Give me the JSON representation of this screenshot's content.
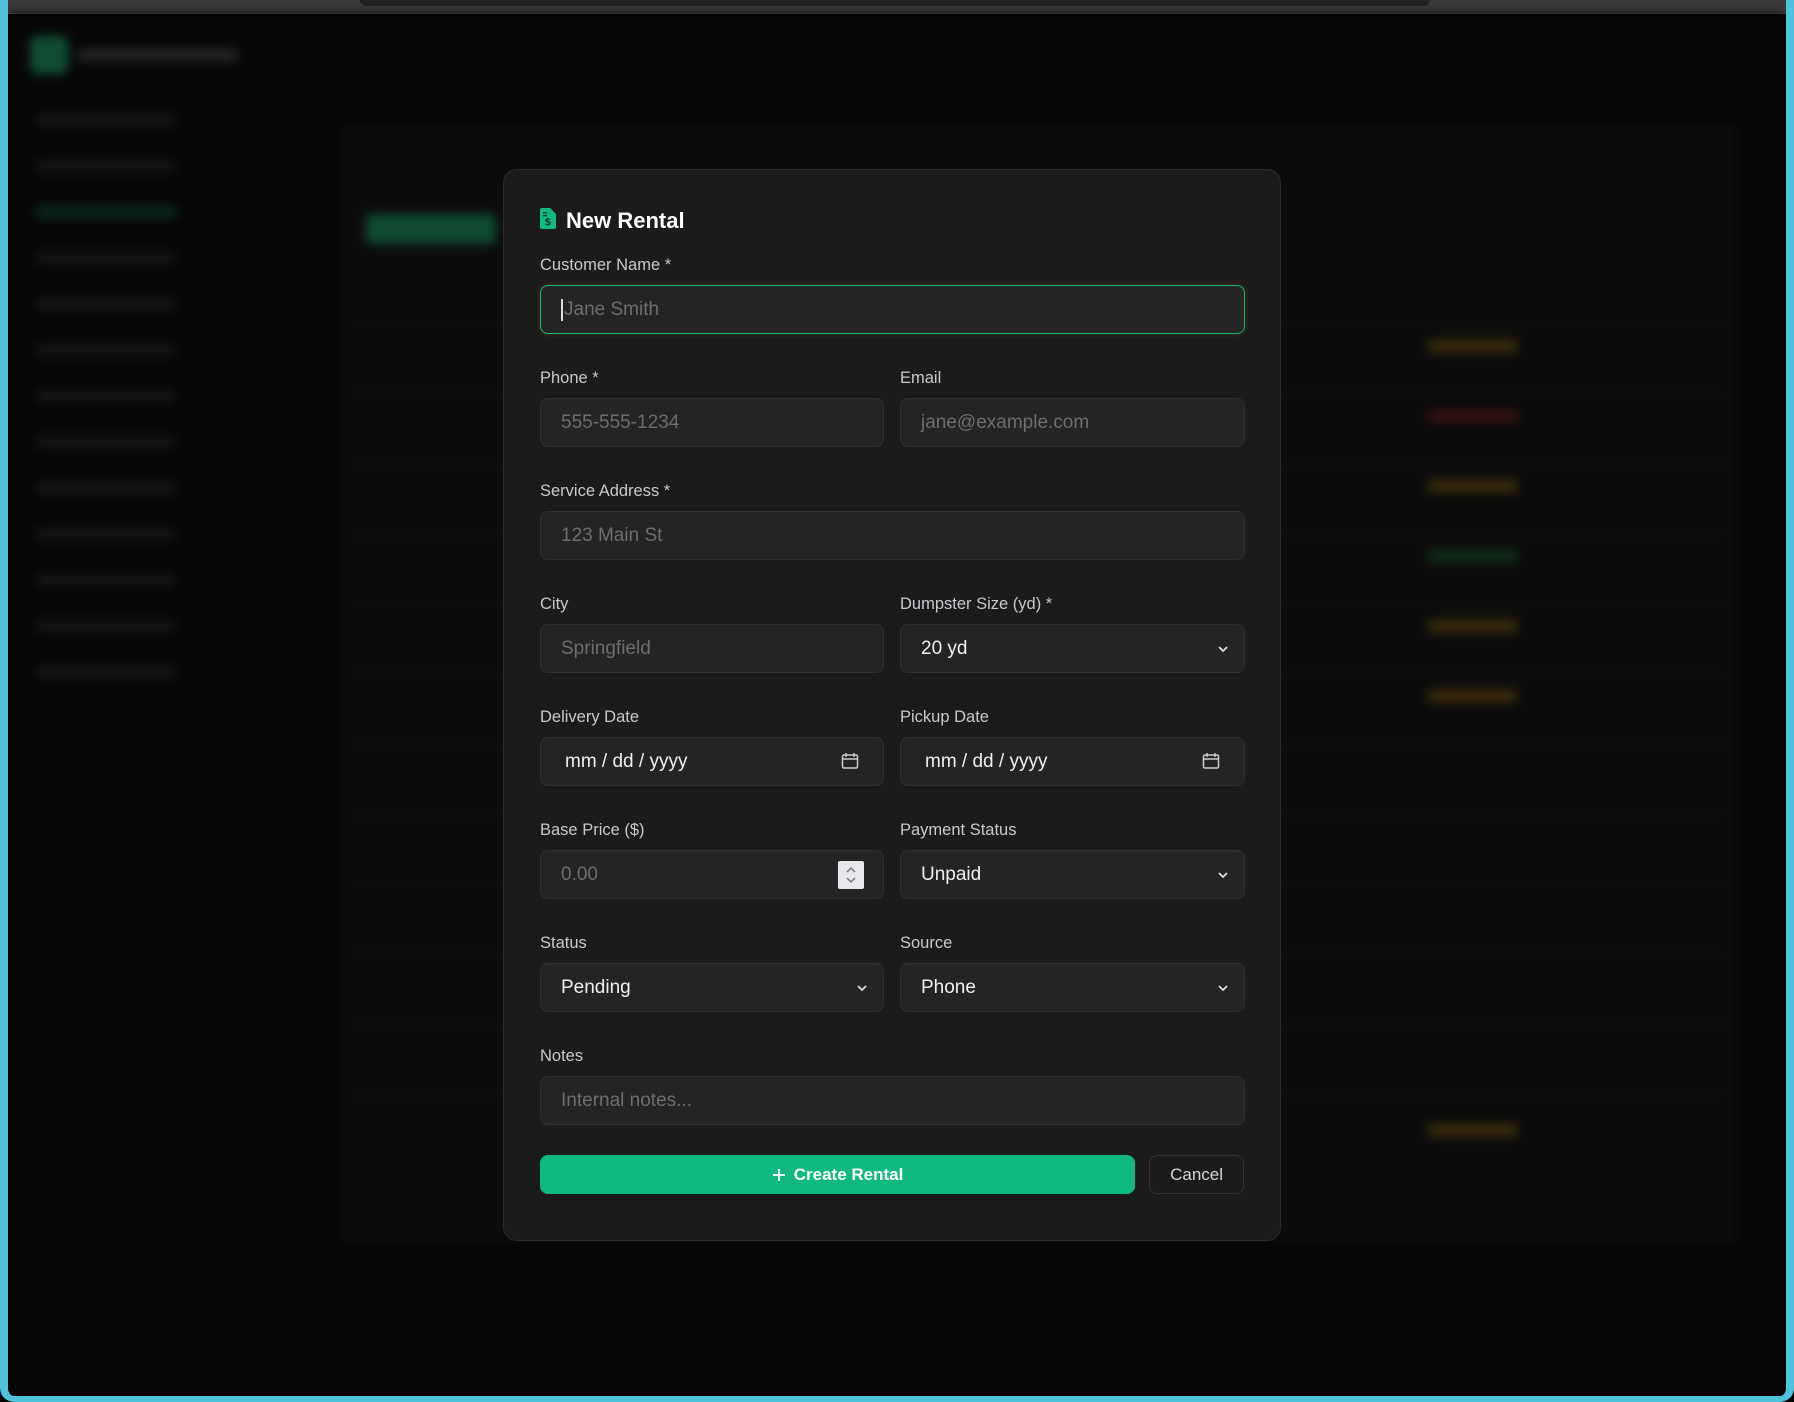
{
  "modal": {
    "title": "New Rental",
    "title_icon": "file-dollar-icon",
    "accent_color": "#10b981",
    "fields": {
      "customer_name": {
        "label": "Customer Name *",
        "placeholder": "Jane Smith",
        "value": ""
      },
      "phone": {
        "label": "Phone *",
        "placeholder": "555-555-1234",
        "value": ""
      },
      "email": {
        "label": "Email",
        "placeholder": "jane@example.com",
        "value": ""
      },
      "service_address": {
        "label": "Service Address *",
        "placeholder": "123 Main St",
        "value": ""
      },
      "city": {
        "label": "City",
        "placeholder": "Springfield",
        "value": ""
      },
      "dumpster_size": {
        "label": "Dumpster Size (yd) *",
        "value": "20 yd"
      },
      "delivery_date": {
        "label": "Delivery Date",
        "value": "mm / dd / yyyy"
      },
      "pickup_date": {
        "label": "Pickup Date",
        "value": "mm / dd / yyyy"
      },
      "base_price": {
        "label": "Base Price ($)",
        "placeholder": "0.00",
        "value": ""
      },
      "payment_status": {
        "label": "Payment Status",
        "value": "Unpaid"
      },
      "status": {
        "label": "Status",
        "value": "Pending"
      },
      "source": {
        "label": "Source",
        "value": "Phone"
      },
      "notes": {
        "label": "Notes",
        "placeholder": "Internal notes...",
        "value": ""
      }
    },
    "create_label": "Create Rental",
    "cancel_label": "Cancel"
  }
}
